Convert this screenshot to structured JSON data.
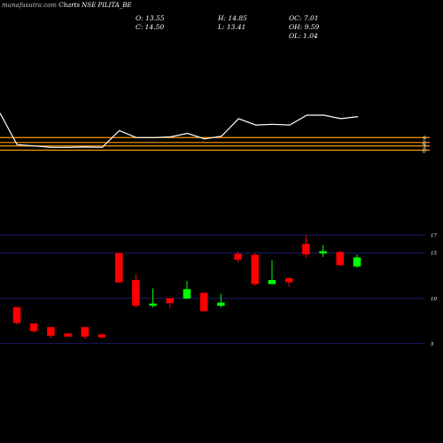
{
  "header": {
    "site": "munafasutra.com",
    "title": "Charts NSE PILITA_BE"
  },
  "ohlc": {
    "open_label": "O:",
    "open": "13.55",
    "close_label": "C:",
    "close": "14.50",
    "high_label": "H:",
    "high": "14.85",
    "low_label": "L:",
    "low": "13.41",
    "oc_label": "OC:",
    "oc": "7.01",
    "oh_label": "OH:",
    "oh": "9.59",
    "ol_label": "OL:",
    "ol": "1.04"
  },
  "colors": {
    "up": "#00ff00",
    "down": "#ff0000",
    "grid": "#1c1c6e",
    "level_line": "#ff9900",
    "indicator": "#ffffff"
  },
  "chart_data": [
    {
      "type": "line",
      "name": "indicator",
      "values": [
        75,
        30,
        28,
        26,
        26,
        26.5,
        26,
        50,
        40,
        40,
        41,
        46,
        38,
        42,
        67,
        58,
        59,
        58,
        72,
        72,
        67,
        70
      ],
      "levels": [
        40,
        33,
        28,
        22
      ],
      "level_labels": [
        "9",
        "6",
        "3",
        "0"
      ],
      "ylim": [
        15,
        110
      ]
    },
    {
      "type": "candlestick",
      "y_ticks": [
        17,
        15,
        10,
        5
      ],
      "ylim": [
        4,
        18.5
      ],
      "candles": [
        {
          "o": 9.0,
          "h": 9.0,
          "l": 7.1,
          "c": 7.3
        },
        {
          "o": 7.2,
          "h": 7.2,
          "l": 6.2,
          "c": 6.4
        },
        {
          "o": 6.8,
          "h": 6.8,
          "l": 5.6,
          "c": 5.9
        },
        {
          "o": 6.1,
          "h": 6.1,
          "l": 5.8,
          "c": 5.8
        },
        {
          "o": 6.8,
          "h": 6.8,
          "l": 5.5,
          "c": 5.8
        },
        {
          "o": 6.0,
          "h": 6.0,
          "l": 5.7,
          "c": 5.7
        },
        {
          "o": 15.0,
          "h": 15.0,
          "l": 11.7,
          "c": 11.8
        },
        {
          "o": 12.0,
          "h": 12.7,
          "l": 9.0,
          "c": 9.2
        },
        {
          "o": 9.2,
          "h": 11.1,
          "l": 9.0,
          "c": 9.4
        },
        {
          "o": 10.0,
          "h": 10.0,
          "l": 8.9,
          "c": 9.5
        },
        {
          "o": 10.0,
          "h": 11.9,
          "l": 10.0,
          "c": 11.0
        },
        {
          "o": 10.6,
          "h": 10.6,
          "l": 8.6,
          "c": 8.6
        },
        {
          "o": 9.2,
          "h": 10.5,
          "l": 9.0,
          "c": 9.5
        },
        {
          "o": 14.9,
          "h": 15.2,
          "l": 14.0,
          "c": 14.3
        },
        {
          "o": 14.8,
          "h": 15.0,
          "l": 11.4,
          "c": 11.6
        },
        {
          "o": 11.6,
          "h": 14.2,
          "l": 11.6,
          "c": 12.0
        },
        {
          "o": 12.2,
          "h": 12.3,
          "l": 11.3,
          "c": 11.8
        },
        {
          "o": 16.0,
          "h": 17.0,
          "l": 14.5,
          "c": 14.9
        },
        {
          "o": 15.0,
          "h": 15.9,
          "l": 14.6,
          "c": 15.2
        },
        {
          "o": 15.1,
          "h": 15.3,
          "l": 13.6,
          "c": 13.7
        },
        {
          "o": 13.55,
          "h": 14.85,
          "l": 13.41,
          "c": 14.5
        }
      ]
    }
  ]
}
